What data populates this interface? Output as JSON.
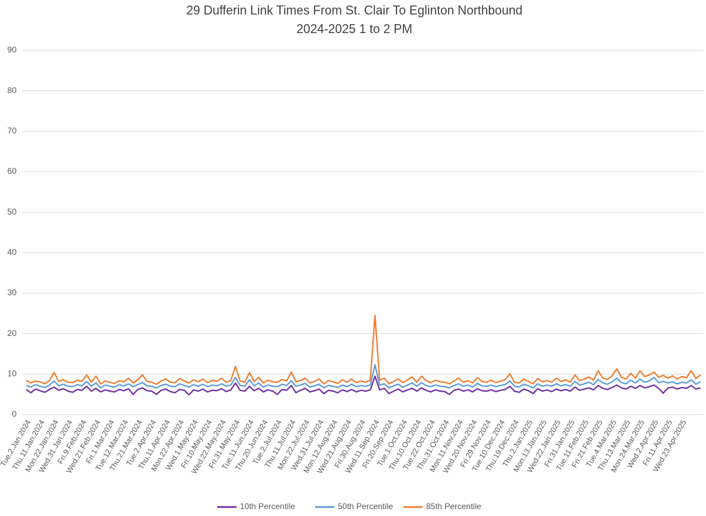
{
  "chart_data": {
    "type": "line",
    "title": "29 Dufferin Link Times From St. Clair To Eglinton Northbound",
    "subtitle": "2024-2025 1 to 2 PM",
    "categories": [
      "Tue.2.Jan.2024",
      null,
      null,
      "Thu.11.Jan.2024",
      null,
      null,
      "Mon.22.Jan.2024",
      null,
      null,
      "Wed.31.Jan.2024",
      null,
      null,
      "Fri.9.Feb.2024",
      null,
      null,
      "Wed.21.Feb.2024",
      null,
      null,
      "Fri.1.Mar.2024",
      null,
      null,
      "Tue.12.Mar.2024",
      null,
      null,
      "Thu.21.Mar.2024",
      null,
      null,
      "Tue.2.Apr.2024",
      null,
      null,
      "Thu.11.Apr.2024",
      null,
      null,
      "Mon.22.Apr.2024",
      null,
      null,
      "Wed.1.May.2024",
      null,
      null,
      "Fri.10.May.2024",
      null,
      null,
      "Wed.22.May.2024",
      null,
      null,
      "Fri.31.May.2024",
      null,
      null,
      "Tue.11.Jun.2024",
      null,
      null,
      "Thu.20.Jun.2024",
      null,
      null,
      "Tue.2.Jul.2024",
      null,
      null,
      "Thu.11.Jul.2024",
      null,
      null,
      "Mon.22.Jul.2024",
      null,
      null,
      "Wed.31.Jul.2024",
      null,
      null,
      "Mon.12.Aug.2024",
      null,
      null,
      "Wed.21.Aug.2024",
      null,
      null,
      "Fri.30.Aug.2024",
      null,
      null,
      "Wed.11.Sep.2024",
      null,
      null,
      "Fri.20.Sep.2024",
      null,
      null,
      "Tue.1.Oct.2024",
      null,
      null,
      "Thu.10.Oct.2024",
      null,
      null,
      "Tue.22.Oct.2024",
      null,
      null,
      "Thu.31.Oct.2024",
      null,
      null,
      "Mon.11.Nov.2024",
      null,
      null,
      "Wed.20.Nov.2024",
      null,
      null,
      "Fri.29.Nov.2024",
      null,
      null,
      "Tue.10.Dec.2024",
      null,
      null,
      "Thu.19.Dec.2024",
      null,
      null,
      "Thu.2.Jan.2025",
      null,
      null,
      "Mon.13.Jan.2025",
      null,
      null,
      "Wed.22.Jan.2025",
      null,
      null,
      "Fri.31.Jan.2025",
      null,
      null,
      "Tue.11.Feb.2025",
      null,
      null,
      "Fri.21.Feb.2025",
      null,
      null,
      "Tue.4.Mar.2025",
      null,
      null,
      "Thu.13.Mar.2025",
      null,
      null,
      "Mon.24.Mar.2025",
      null,
      null,
      "Wed.2.Apr.2025",
      null,
      null,
      "Fri.11.Apr.2025",
      null,
      null,
      "Wed.23.Apr.2025",
      null,
      null,
      null,
      null
    ],
    "series": [
      {
        "name": "10th Percentile",
        "color": "#7030a0",
        "values": [
          6.2,
          5.4,
          6.3,
          5.9,
          5.5,
          6.2,
          6.8,
          6.0,
          6.4,
          5.8,
          5.5,
          6.2,
          6.0,
          7.0,
          5.8,
          6.5,
          5.6,
          6.1,
          5.8,
          5.6,
          6.2,
          5.9,
          6.4,
          5.0,
          6.2,
          6.6,
          5.9,
          5.8,
          5.0,
          6.0,
          6.3,
          5.7,
          5.4,
          6.2,
          6.0,
          4.9,
          6.1,
          5.8,
          6.3,
          5.6,
          6.0,
          5.9,
          6.4,
          5.7,
          6.1,
          7.8,
          6.0,
          5.8,
          7.0,
          5.9,
          6.5,
          5.6,
          6.1,
          5.8,
          5.0,
          6.2,
          6.0,
          7.2,
          5.4,
          6.0,
          6.5,
          5.6,
          5.9,
          6.3,
          5.2,
          6.0,
          5.8,
          5.4,
          6.1,
          5.7,
          6.2,
          5.6,
          6.0,
          5.8,
          6.1,
          9.5,
          6.1,
          6.5,
          5.2,
          5.8,
          6.3,
          5.6,
          6.1,
          6.5,
          5.8,
          6.6,
          6.0,
          5.6,
          6.1,
          5.8,
          5.7,
          5.0,
          6.0,
          6.3,
          5.8,
          6.1,
          5.6,
          6.4,
          5.9,
          5.8,
          6.1,
          5.7,
          6.0,
          6.2,
          7.0,
          5.8,
          5.5,
          6.3,
          5.9,
          5.2,
          6.4,
          5.8,
          6.1,
          5.7,
          6.3,
          5.9,
          6.2,
          5.8,
          6.8,
          6.0,
          6.3,
          6.6,
          6.1,
          7.2,
          6.5,
          6.2,
          6.7,
          7.3,
          6.6,
          6.3,
          7.0,
          6.5,
          7.2,
          6.6,
          6.9,
          7.3,
          6.5,
          5.3,
          6.6,
          6.8,
          6.3,
          6.7,
          6.5,
          7.2,
          6.3,
          6.6
        ]
      },
      {
        "name": "50th Percentile",
        "color": "#5b9bd5",
        "values": [
          7.2,
          6.8,
          7.4,
          7.0,
          6.7,
          7.3,
          8.3,
          7.1,
          7.5,
          7.0,
          6.9,
          7.4,
          7.1,
          8.2,
          7.0,
          7.8,
          6.6,
          7.3,
          7.0,
          6.8,
          7.4,
          7.1,
          7.6,
          6.9,
          7.4,
          7.9,
          7.1,
          7.0,
          6.6,
          7.2,
          7.5,
          7.0,
          6.9,
          7.6,
          7.2,
          6.8,
          7.4,
          7.0,
          7.5,
          6.9,
          7.3,
          7.1,
          7.6,
          7.0,
          7.3,
          9.2,
          7.2,
          7.0,
          8.6,
          7.1,
          7.8,
          6.8,
          7.3,
          7.0,
          6.9,
          7.5,
          7.2,
          8.4,
          7.0,
          7.3,
          7.7,
          6.8,
          7.1,
          7.5,
          6.6,
          7.2,
          7.0,
          6.7,
          7.3,
          6.9,
          7.5,
          6.9,
          7.2,
          7.0,
          7.3,
          12.3,
          7.3,
          7.6,
          6.6,
          7.1,
          7.5,
          6.8,
          7.3,
          7.8,
          7.0,
          7.9,
          7.2,
          6.9,
          7.3,
          7.0,
          6.9,
          6.6,
          7.2,
          7.6,
          7.0,
          7.3,
          6.8,
          7.7,
          7.1,
          7.0,
          7.3,
          6.9,
          7.2,
          7.4,
          8.3,
          7.0,
          6.8,
          7.5,
          7.1,
          6.6,
          7.6,
          7.0,
          7.3,
          7.0,
          7.6,
          7.1,
          7.4,
          7.0,
          8.2,
          7.3,
          7.6,
          8.0,
          7.4,
          8.7,
          7.8,
          7.5,
          8.1,
          9.0,
          7.9,
          7.6,
          8.5,
          7.8,
          8.8,
          8.0,
          8.3,
          9.2,
          7.9,
          8.2,
          7.8,
          8.1,
          7.6,
          8.0,
          7.8,
          8.6,
          7.5,
          8.1
        ]
      },
      {
        "name": "85th Percentile",
        "color": "#ed7d31",
        "values": [
          8.5,
          7.8,
          8.3,
          8.1,
          7.6,
          8.4,
          10.4,
          8.2,
          8.6,
          8.0,
          7.9,
          8.5,
          8.2,
          9.8,
          8.0,
          9.5,
          7.6,
          8.3,
          8.0,
          7.7,
          8.4,
          8.1,
          9.0,
          7.8,
          8.6,
          9.8,
          8.2,
          8.0,
          7.5,
          8.3,
          8.8,
          8.0,
          7.9,
          8.9,
          8.3,
          7.8,
          8.6,
          8.1,
          8.8,
          7.9,
          8.5,
          8.2,
          9.0,
          8.0,
          8.4,
          11.9,
          8.3,
          8.0,
          10.4,
          8.2,
          9.2,
          7.8,
          8.5,
          8.1,
          8.0,
          8.7,
          8.3,
          10.5,
          8.1,
          8.4,
          9.0,
          7.8,
          8.2,
          8.8,
          7.6,
          8.4,
          8.1,
          7.7,
          8.6,
          8.0,
          8.8,
          7.9,
          8.3,
          8.0,
          8.5,
          24.5,
          8.5,
          9.0,
          7.6,
          8.2,
          8.8,
          7.9,
          8.6,
          9.3,
          8.0,
          9.5,
          8.4,
          7.9,
          8.5,
          8.1,
          8.0,
          7.6,
          8.3,
          9.0,
          8.0,
          8.4,
          7.8,
          9.1,
          8.2,
          8.0,
          8.5,
          7.9,
          8.3,
          8.6,
          10.1,
          8.0,
          7.8,
          8.8,
          8.2,
          7.6,
          8.9,
          8.1,
          8.4,
          8.0,
          9.0,
          8.2,
          8.6,
          8.0,
          9.8,
          8.4,
          8.8,
          9.3,
          8.5,
          10.8,
          9.0,
          8.7,
          9.6,
          11.3,
          9.2,
          8.8,
          10.2,
          9.0,
          10.8,
          9.4,
          9.8,
          10.5,
          9.2,
          9.7,
          9.0,
          9.6,
          8.8,
          9.4,
          9.1,
          10.9,
          8.9,
          9.8
        ]
      }
    ],
    "ylim": [
      0,
      90
    ],
    "yticks": [
      0,
      10,
      20,
      30,
      40,
      50,
      60,
      70,
      80,
      90
    ],
    "grid": true,
    "legend": "bottom"
  }
}
